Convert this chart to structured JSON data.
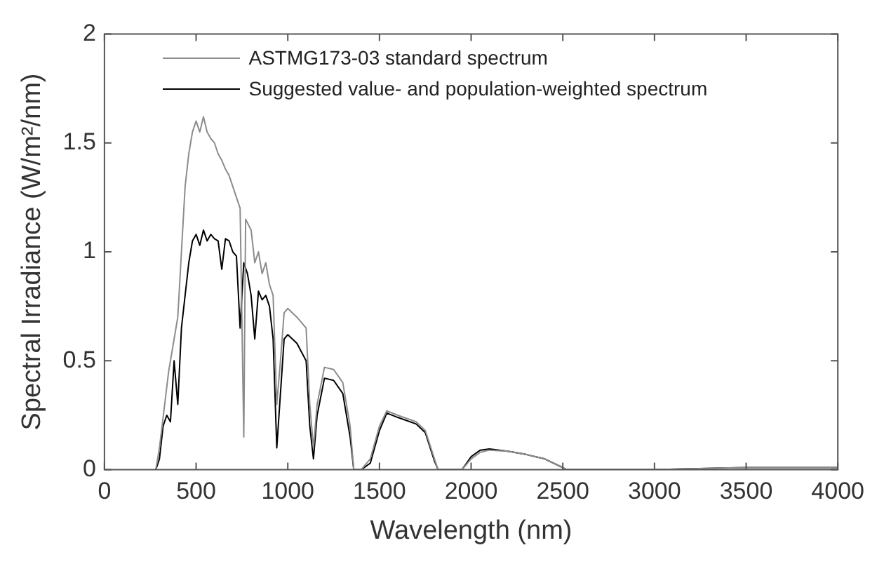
{
  "chart_data": {
    "type": "line",
    "xlabel": "Wavelength (nm)",
    "ylabel": "Spectral Irradiance (W/m²/nm)",
    "xlim": [
      0,
      4000
    ],
    "xticks": [
      0,
      500,
      1000,
      1500,
      2000,
      2500,
      3000,
      3500,
      4000
    ],
    "ylim": [
      0,
      2
    ],
    "yticks": [
      0,
      0.5,
      1,
      1.5,
      2
    ],
    "grid": false,
    "legend": "top left",
    "marker": "none",
    "line_style": "solid",
    "series": [
      {
        "name": "ASTMG173-03 standard spectrum",
        "color": "#8c8c8c",
        "x": [
          280,
          300,
          350,
          380,
          400,
          420,
          440,
          460,
          480,
          500,
          520,
          540,
          560,
          580,
          600,
          620,
          640,
          660,
          680,
          700,
          720,
          740,
          760,
          770,
          800,
          820,
          840,
          860,
          880,
          900,
          920,
          940,
          960,
          980,
          1000,
          1050,
          1100,
          1120,
          1140,
          1160,
          1200,
          1250,
          1300,
          1340,
          1360,
          1400,
          1450,
          1500,
          1540,
          1600,
          1700,
          1750,
          1800,
          1820,
          1950,
          2000,
          2050,
          2100,
          2200,
          2300,
          2400,
          2500,
          2520,
          3000,
          3500,
          4000
        ],
        "values": [
          0,
          0.1,
          0.45,
          0.6,
          0.7,
          1.0,
          1.3,
          1.45,
          1.55,
          1.6,
          1.55,
          1.62,
          1.55,
          1.52,
          1.5,
          1.45,
          1.42,
          1.38,
          1.35,
          1.3,
          1.25,
          1.2,
          0.15,
          1.15,
          1.1,
          0.95,
          1.0,
          0.9,
          0.95,
          0.85,
          0.8,
          0.3,
          0.5,
          0.72,
          0.74,
          0.7,
          0.65,
          0.3,
          0.1,
          0.3,
          0.47,
          0.46,
          0.4,
          0.2,
          0,
          0,
          0.05,
          0.2,
          0.27,
          0.25,
          0.22,
          0.18,
          0.05,
          0,
          0,
          0.05,
          0.08,
          0.09,
          0.085,
          0.07,
          0.05,
          0.01,
          0,
          0,
          0.01,
          0.01
        ]
      },
      {
        "name": "Suggested value- and population-weighted spectrum",
        "color": "#000000",
        "x": [
          280,
          300,
          320,
          340,
          360,
          380,
          400,
          420,
          440,
          460,
          480,
          500,
          520,
          540,
          560,
          580,
          600,
          620,
          640,
          660,
          680,
          700,
          720,
          740,
          760,
          780,
          800,
          820,
          840,
          860,
          880,
          900,
          920,
          940,
          960,
          980,
          1000,
          1050,
          1100,
          1120,
          1140,
          1160,
          1200,
          1250,
          1300,
          1340,
          1360,
          1400,
          1450,
          1500,
          1540,
          1600,
          1700,
          1750,
          1800,
          1820,
          1950,
          2000,
          2050,
          2100,
          2200,
          2300,
          2400,
          2500,
          2520,
          3000,
          3500,
          4000
        ],
        "values": [
          0,
          0.05,
          0.2,
          0.25,
          0.22,
          0.5,
          0.3,
          0.65,
          0.8,
          0.95,
          1.05,
          1.08,
          1.03,
          1.1,
          1.05,
          1.08,
          1.06,
          1.05,
          0.92,
          1.06,
          1.05,
          1.0,
          0.98,
          0.65,
          0.95,
          0.9,
          0.8,
          0.6,
          0.82,
          0.78,
          0.8,
          0.75,
          0.6,
          0.1,
          0.35,
          0.6,
          0.62,
          0.58,
          0.5,
          0.2,
          0.05,
          0.25,
          0.42,
          0.41,
          0.35,
          0.15,
          0,
          0,
          0.03,
          0.18,
          0.26,
          0.24,
          0.21,
          0.17,
          0.04,
          0,
          0,
          0.06,
          0.09,
          0.095,
          0.085,
          0.07,
          0.05,
          0.01,
          0,
          0,
          0.01,
          0.01
        ]
      }
    ]
  }
}
